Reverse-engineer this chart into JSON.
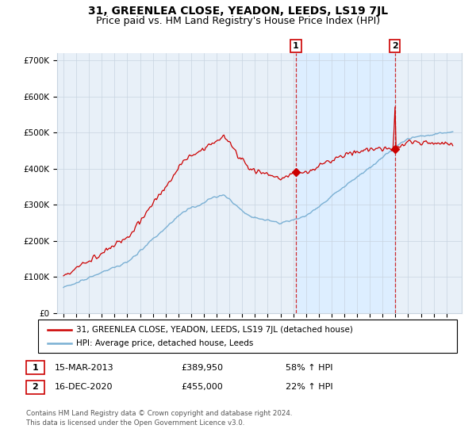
{
  "title": "31, GREENLEA CLOSE, YEADON, LEEDS, LS19 7JL",
  "subtitle": "Price paid vs. HM Land Registry's House Price Index (HPI)",
  "ylim": [
    0,
    720000
  ],
  "yticks": [
    0,
    100000,
    200000,
    300000,
    400000,
    500000,
    600000,
    700000
  ],
  "ytick_labels": [
    "£0",
    "£100K",
    "£200K",
    "£300K",
    "£400K",
    "£500K",
    "£600K",
    "£700K"
  ],
  "t1": 2013.21,
  "t2": 2020.96,
  "p1": 389950,
  "p2": 455000,
  "legend_line1": "31, GREENLEA CLOSE, YEADON, LEEDS, LS19 7JL (detached house)",
  "legend_line2": "HPI: Average price, detached house, Leeds",
  "table_row1": [
    "1",
    "15-MAR-2013",
    "£389,950",
    "58% ↑ HPI"
  ],
  "table_row2": [
    "2",
    "16-DEC-2020",
    "£455,000",
    "22% ↑ HPI"
  ],
  "footnote1": "Contains HM Land Registry data © Crown copyright and database right 2024.",
  "footnote2": "This data is licensed under the Open Government Licence v3.0.",
  "red_color": "#cc0000",
  "blue_color": "#7ab0d4",
  "shade_color": "#ddeeff",
  "background_color": "#e8f0f8",
  "grid_color": "#c8d4e0",
  "title_fontsize": 10,
  "subtitle_fontsize": 9
}
